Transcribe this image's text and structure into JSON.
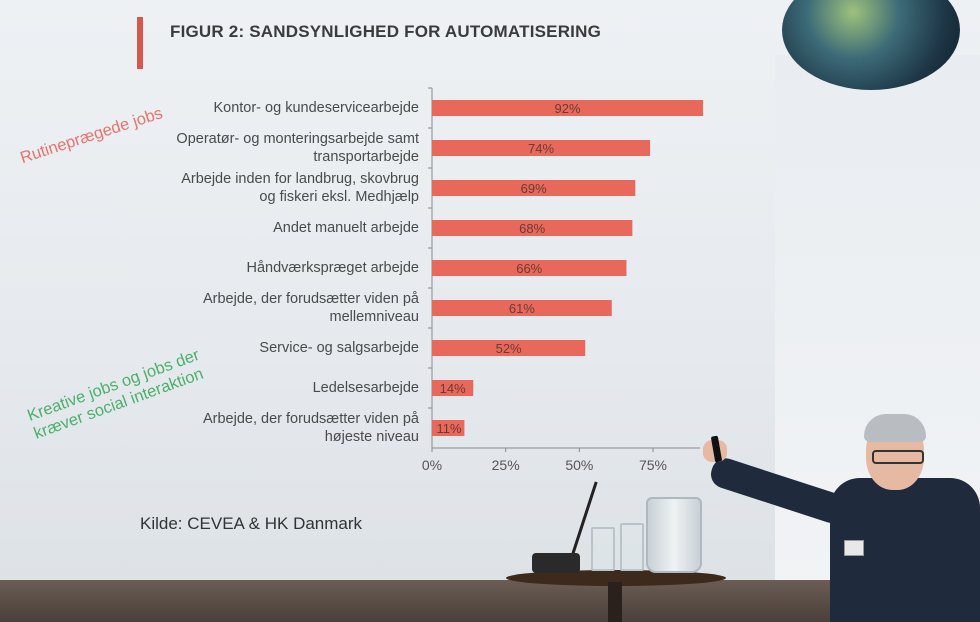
{
  "title": "FIGUR 2: SANDSYNLIGHED FOR AUTOMATISERING",
  "annotations": {
    "routine": "Rutineprægede jobs",
    "creative_line1": "Kreative jobs og jobs der",
    "creative_line2": "kræver social interaktion"
  },
  "source": "Kilde: CEVEA & HK Danmark",
  "colors": {
    "bar": "#e8695b",
    "accent": "#d8574d",
    "routine_text": "#e8736a",
    "creative_text": "#4caf6a"
  },
  "chart_data": {
    "type": "bar",
    "orientation": "horizontal",
    "title": "FIGUR 2: SANDSYNLIGHED FOR AUTOMATISERING",
    "categories": [
      [
        "Kontor- og kundeservicearbejde"
      ],
      [
        "Operatør- og monteringsarbejde samt",
        "transportarbejde"
      ],
      [
        "Arbejde inden for landbrug, skovbrug",
        "og fiskeri eksl. Medhjælp"
      ],
      [
        "Andet manuelt arbejde"
      ],
      [
        "Håndværkspræget arbejde"
      ],
      [
        "Arbejde, der forudsætter viden på",
        "mellemniveau"
      ],
      [
        "Service- og salgsarbejde"
      ],
      [
        "Ledelsesarbejde"
      ],
      [
        "Arbejde, der forudsætter viden på",
        "højeste niveau"
      ]
    ],
    "values": [
      92,
      74,
      69,
      68,
      66,
      61,
      52,
      14,
      11
    ],
    "data_labels": [
      "92%",
      "74%",
      "69%",
      "68%",
      "66%",
      "61%",
      "52%",
      "14%",
      "11%"
    ],
    "xticks": [
      "0%",
      "25%",
      "50%",
      "75%"
    ],
    "xlim": [
      0,
      100
    ],
    "grid": false,
    "legend": "none"
  }
}
